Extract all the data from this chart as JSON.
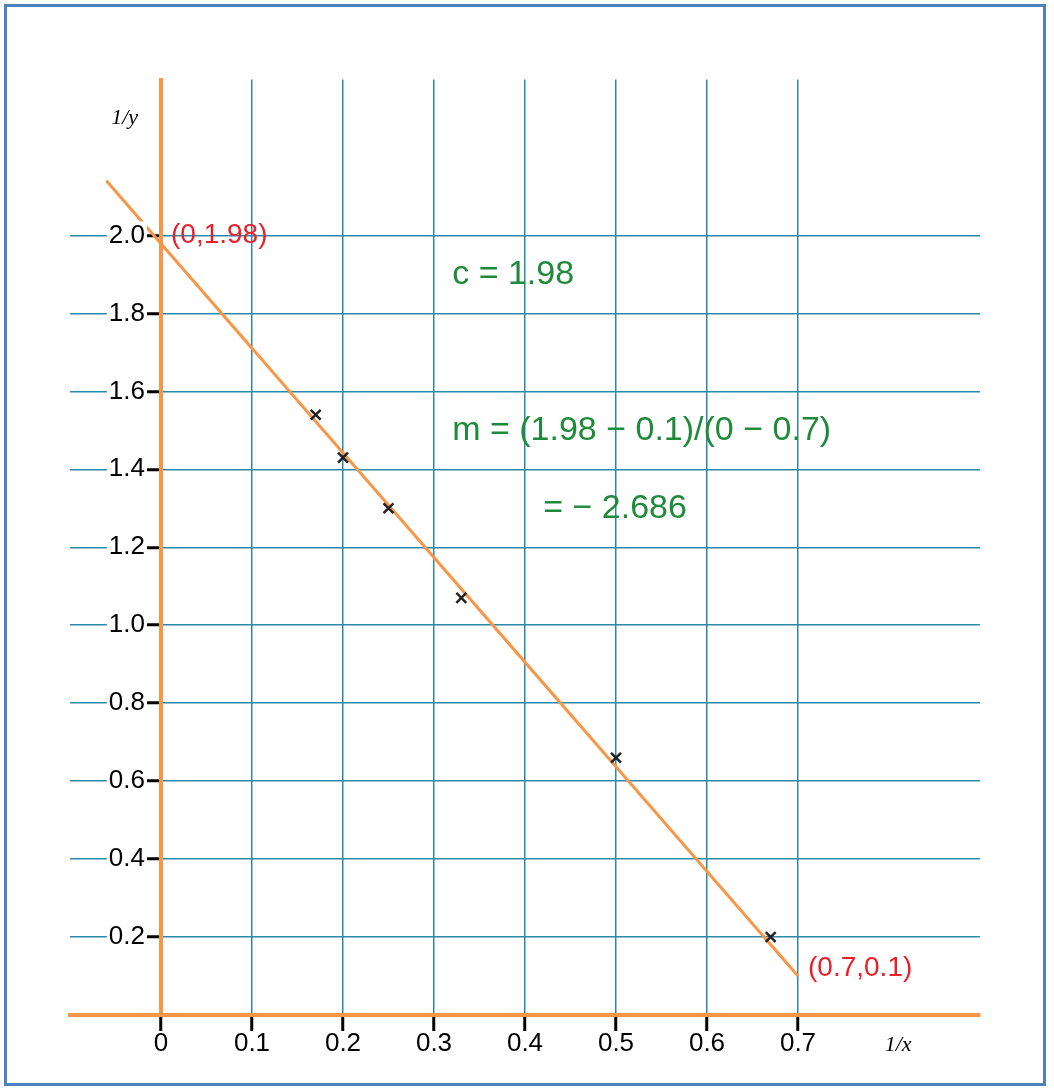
{
  "chart_data": {
    "type": "scatter",
    "xlabel": "1/x",
    "ylabel": "1/y",
    "x": [
      0.17,
      0.2,
      0.25,
      0.33,
      0.5,
      0.67
    ],
    "series": [
      {
        "type": "scatter",
        "color": "#222222",
        "values": [
          1.54,
          1.43,
          1.3,
          1.07,
          0.66,
          0.2
        ],
        "marker": "cross"
      },
      {
        "type": "line",
        "color": "#f79646",
        "x": [
          -0.06,
          0.7
        ],
        "values": [
          2.14,
          0.1
        ],
        "marker": "none"
      }
    ],
    "xlim": [
      -0.1,
      0.9
    ],
    "ylim": [
      0,
      2.4
    ],
    "xticks": [
      {
        "value": 0,
        "label": "0"
      },
      0.1,
      0.2,
      0.3,
      0.4,
      0.5,
      0.6,
      0.7
    ],
    "yticks": [
      {
        "value": 0,
        "label": null
      },
      0.2,
      0.4,
      0.6,
      0.8,
      {
        "value": 1,
        "label": "1.0"
      },
      1.2,
      1.4,
      1.6,
      1.8,
      {
        "value": 2,
        "label": "2.0"
      }
    ],
    "grid": true,
    "legend": false,
    "annotations": [
      {
        "text": "(0,1.98)",
        "x": 0,
        "y": 1.98
      },
      {
        "text": "(0.7,0.1)",
        "x": 0.7,
        "y": 0.1
      },
      "c = 1.98",
      "m = (1.98 − 0.1)/(0 − 0.7)",
      "= − 2.686"
    ]
  }
}
